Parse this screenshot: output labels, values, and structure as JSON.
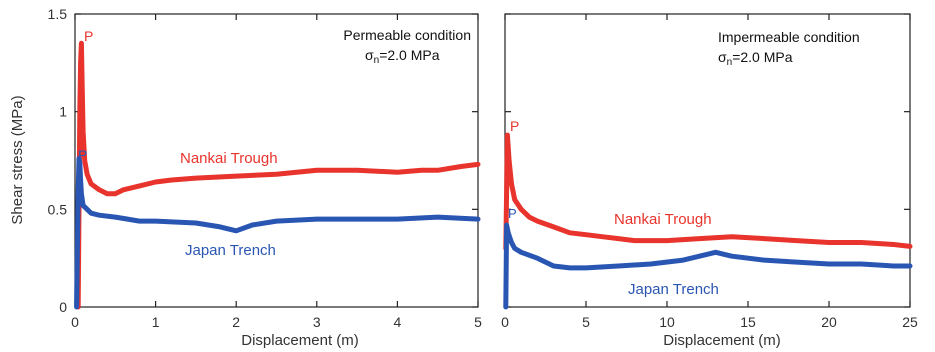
{
  "chart_data": [
    {
      "type": "line",
      "title": "",
      "annotation_line1": "Permeable condition",
      "annotation_sigma": "σ",
      "annotation_sub": "n",
      "annotation_rest": "=2.0 MPa",
      "xlabel": "Displacement (m)",
      "ylabel": "Shear stress (MPa)",
      "xlim": [
        0,
        5
      ],
      "ylim": [
        0,
        1.5
      ],
      "xticks": [
        0,
        1,
        2,
        3,
        4,
        5
      ],
      "yticks": [
        0,
        0.5,
        1,
        1.5
      ],
      "ytick_labels": [
        "0",
        "0.5",
        "1",
        "1.5"
      ],
      "grid": false,
      "series": [
        {
          "name": "Nankai Trough",
          "color": "#e8342c",
          "peak_label": "P",
          "x": [
            0.04,
            0.05,
            0.06,
            0.07,
            0.08,
            0.09,
            0.1,
            0.12,
            0.15,
            0.2,
            0.3,
            0.4,
            0.5,
            0.6,
            0.8,
            1.0,
            1.2,
            1.5,
            2.0,
            2.5,
            3.0,
            3.5,
            4.0,
            4.3,
            4.5,
            4.8,
            5.0
          ],
          "values": [
            0.0,
            0.5,
            1.0,
            1.25,
            1.35,
            1.1,
            0.9,
            0.75,
            0.68,
            0.63,
            0.6,
            0.58,
            0.58,
            0.6,
            0.62,
            0.64,
            0.65,
            0.66,
            0.67,
            0.68,
            0.7,
            0.7,
            0.69,
            0.7,
            0.7,
            0.72,
            0.73
          ]
        },
        {
          "name": "Japan Trench",
          "color": "#2a56b3",
          "peak_label": "P",
          "x": [
            0.02,
            0.03,
            0.04,
            0.05,
            0.06,
            0.07,
            0.08,
            0.1,
            0.15,
            0.2,
            0.3,
            0.5,
            0.8,
            1.0,
            1.5,
            1.8,
            2.0,
            2.2,
            2.5,
            3.0,
            3.5,
            4.0,
            4.5,
            5.0
          ],
          "values": [
            0.0,
            0.3,
            0.6,
            0.76,
            0.74,
            0.65,
            0.58,
            0.52,
            0.5,
            0.48,
            0.47,
            0.46,
            0.44,
            0.44,
            0.43,
            0.41,
            0.39,
            0.42,
            0.44,
            0.45,
            0.45,
            0.45,
            0.46,
            0.45
          ]
        }
      ]
    },
    {
      "type": "line",
      "title": "",
      "annotation_line1": "Impermeable condition",
      "annotation_sigma": "σ",
      "annotation_sub": "n",
      "annotation_rest": "=2.0 MPa",
      "xlabel": "Displacement (m)",
      "ylabel": "",
      "xlim": [
        0,
        25
      ],
      "ylim": [
        0,
        1.5
      ],
      "xticks": [
        0,
        5,
        10,
        15,
        20,
        25
      ],
      "yticks": [
        0,
        0.5,
        1,
        1.5
      ],
      "grid": false,
      "series": [
        {
          "name": "Nankai Trough",
          "color": "#e8342c",
          "peak_label": "P",
          "x": [
            0.05,
            0.15,
            0.25,
            0.4,
            0.6,
            1.0,
            1.5,
            2.0,
            3.0,
            4.0,
            5.0,
            6.0,
            7.0,
            8.0,
            10.0,
            12.0,
            14.0,
            16.0,
            18.0,
            20.0,
            22.0,
            24.0,
            25.0
          ],
          "values": [
            0.3,
            0.88,
            0.75,
            0.63,
            0.55,
            0.5,
            0.46,
            0.44,
            0.41,
            0.38,
            0.37,
            0.36,
            0.35,
            0.34,
            0.34,
            0.35,
            0.36,
            0.35,
            0.34,
            0.33,
            0.33,
            0.32,
            0.31
          ]
        },
        {
          "name": "Japan Trench",
          "color": "#2a56b3",
          "peak_label": "P",
          "x": [
            0.05,
            0.1,
            0.2,
            0.4,
            0.6,
            1.0,
            2.0,
            3.0,
            4.0,
            5.0,
            7.0,
            9.0,
            11.0,
            12.0,
            13.0,
            14.0,
            16.0,
            18.0,
            20.0,
            22.0,
            24.0,
            25.0
          ],
          "values": [
            0.0,
            0.42,
            0.38,
            0.33,
            0.3,
            0.28,
            0.25,
            0.21,
            0.2,
            0.2,
            0.21,
            0.22,
            0.24,
            0.26,
            0.28,
            0.26,
            0.24,
            0.23,
            0.22,
            0.22,
            0.21,
            0.21
          ]
        }
      ]
    }
  ]
}
